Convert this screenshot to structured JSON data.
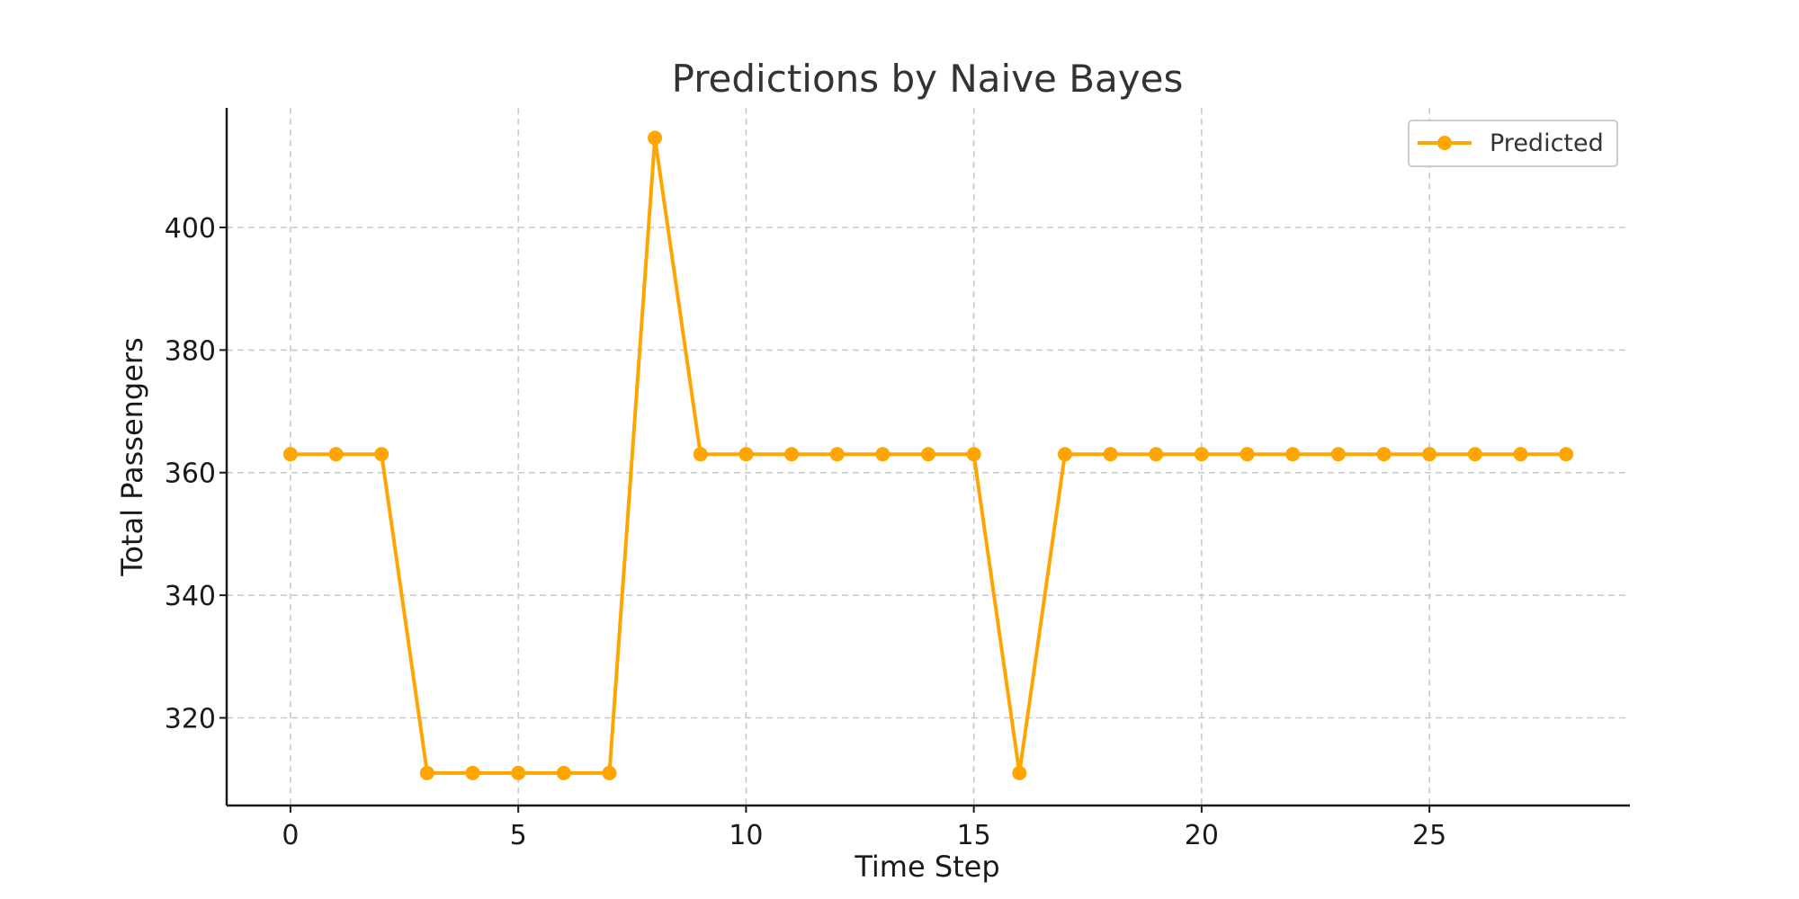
{
  "chart_data": {
    "type": "line",
    "title": "Predictions by Naive Bayes",
    "xlabel": "Time Step",
    "ylabel": "Total Passengers",
    "xlim": [
      -1.4,
      29.4
    ],
    "ylim": [
      305.7,
      419.5
    ],
    "xticks": [
      0,
      5,
      10,
      15,
      20,
      25
    ],
    "yticks": [
      320,
      340,
      360,
      380,
      400
    ],
    "grid": true,
    "legend_position": "top-right",
    "series": [
      {
        "name": "Predicted",
        "color": "#FFA500",
        "marker": "circle",
        "x": [
          0,
          1,
          2,
          3,
          4,
          5,
          6,
          7,
          8,
          9,
          10,
          11,
          12,
          13,
          14,
          15,
          16,
          17,
          18,
          19,
          20,
          21,
          22,
          23,
          24,
          25,
          26,
          27,
          28
        ],
        "values": [
          363,
          363,
          363,
          311,
          311,
          311,
          311,
          311,
          414.6,
          363,
          363,
          363,
          363,
          363,
          363,
          363,
          311,
          363,
          363,
          363,
          363,
          363,
          363,
          363,
          363,
          363,
          363,
          363,
          363
        ]
      }
    ]
  }
}
